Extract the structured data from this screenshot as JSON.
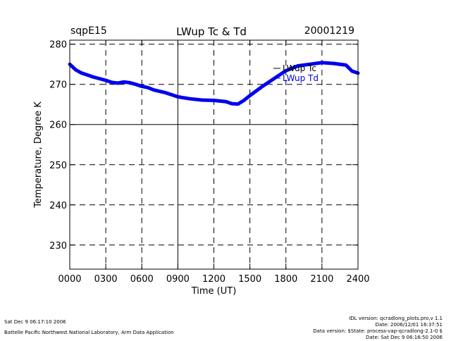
{
  "header": {
    "site": "sqpE15",
    "title": "LWup Tc & Td",
    "date": "20001219"
  },
  "footer": {
    "left": [
      "Sat Dec  9 06:17:10 2006",
      "Battelle Pacific Northwest National Laboratory, Arm Data Application"
    ],
    "right": [
      "IDL version: qcradlong_plots.pro,v 1.1",
      "Date: 2006/12/01 16:37:51",
      "Data version: $State: process-vap-qcradlong-2.1-0 $",
      "Date: Sat Dec  9 06:16:50 2006"
    ]
  },
  "chart_data": {
    "type": "line",
    "title": "LWup Tc & Td",
    "xlabel": "Time (UT)",
    "ylabel": "Temperature, Degree K",
    "xlim": [
      0,
      2400
    ],
    "ylim": [
      224,
      281
    ],
    "xticks": [
      0,
      300,
      600,
      900,
      1200,
      1500,
      1800,
      2100,
      2400
    ],
    "xtick_labels": [
      "0000",
      "0300",
      "0600",
      "0900",
      "1200",
      "1500",
      "1800",
      "2100",
      "2400"
    ],
    "yticks": [
      230,
      240,
      250,
      260,
      270,
      280
    ],
    "ytick_labels": [
      "230",
      "240",
      "250",
      "260",
      "270",
      "280"
    ],
    "grid": true,
    "legend_position": "top-right",
    "series": [
      {
        "name": "LWup Tc",
        "color": "#000000",
        "x": [
          0,
          50,
          100,
          200,
          300,
          350,
          400,
          450,
          500,
          550,
          600,
          650,
          700,
          800,
          900,
          1000,
          1100,
          1200,
          1300,
          1350,
          1400,
          1450,
          1500,
          1600,
          1700,
          1800,
          1900,
          2000,
          2100,
          2200,
          2300,
          2350,
          2400
        ],
        "values": [
          275.0,
          273.6,
          272.8,
          271.8,
          271.0,
          270.5,
          270.3,
          270.6,
          270.4,
          270.0,
          269.5,
          269.2,
          268.6,
          267.9,
          266.9,
          266.4,
          266.1,
          266.0,
          265.7,
          265.2,
          265.1,
          266.0,
          267.2,
          269.4,
          271.4,
          273.4,
          274.6,
          275.0,
          275.4,
          275.2,
          274.8,
          273.3,
          272.8
        ]
      },
      {
        "name": "LWup Td",
        "color": "#0000ee",
        "x": [
          0,
          50,
          100,
          200,
          300,
          350,
          400,
          450,
          500,
          550,
          600,
          650,
          700,
          800,
          900,
          1000,
          1100,
          1200,
          1300,
          1350,
          1400,
          1450,
          1500,
          1600,
          1700,
          1800,
          1900,
          2000,
          2100,
          2200,
          2300,
          2350,
          2400
        ],
        "values": [
          275.0,
          273.6,
          272.8,
          271.8,
          271.0,
          270.5,
          270.3,
          270.6,
          270.4,
          270.0,
          269.5,
          269.2,
          268.6,
          267.9,
          266.9,
          266.4,
          266.1,
          266.0,
          265.7,
          265.2,
          265.1,
          266.0,
          267.2,
          269.4,
          271.4,
          273.4,
          274.6,
          275.0,
          275.4,
          275.2,
          274.8,
          273.3,
          272.8
        ]
      }
    ]
  }
}
